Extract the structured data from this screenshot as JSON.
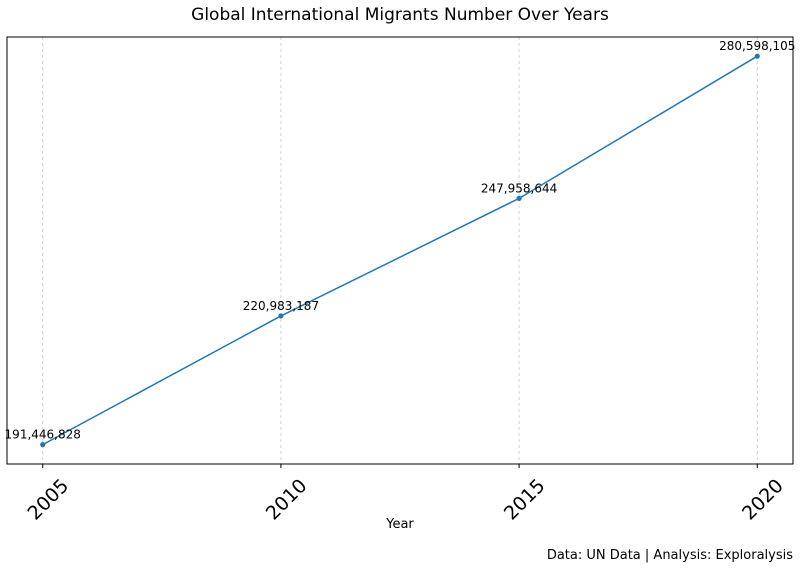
{
  "chart_data": {
    "type": "line",
    "title": "Global International Migrants Number Over Years",
    "xlabel": "Year",
    "ylabel": "",
    "x": [
      2005,
      2010,
      2015,
      2020
    ],
    "x_tick_labels": [
      "2005",
      "2010",
      "2015",
      "2020"
    ],
    "series": [
      {
        "values": [
          191446828,
          220983187,
          247958644,
          280598105
        ],
        "data_labels": [
          "191,446,828",
          "220,983,187",
          "247,958,644",
          "280,598,105"
        ],
        "color": "#1f77b4"
      }
    ],
    "xlim": [
      2004.25,
      2020.75
    ],
    "ylim": [
      187000000,
      285000000
    ],
    "grid": "x-dashed",
    "legend": "none"
  },
  "caption": "Data: UN Data | Analysis: Exploralysis"
}
